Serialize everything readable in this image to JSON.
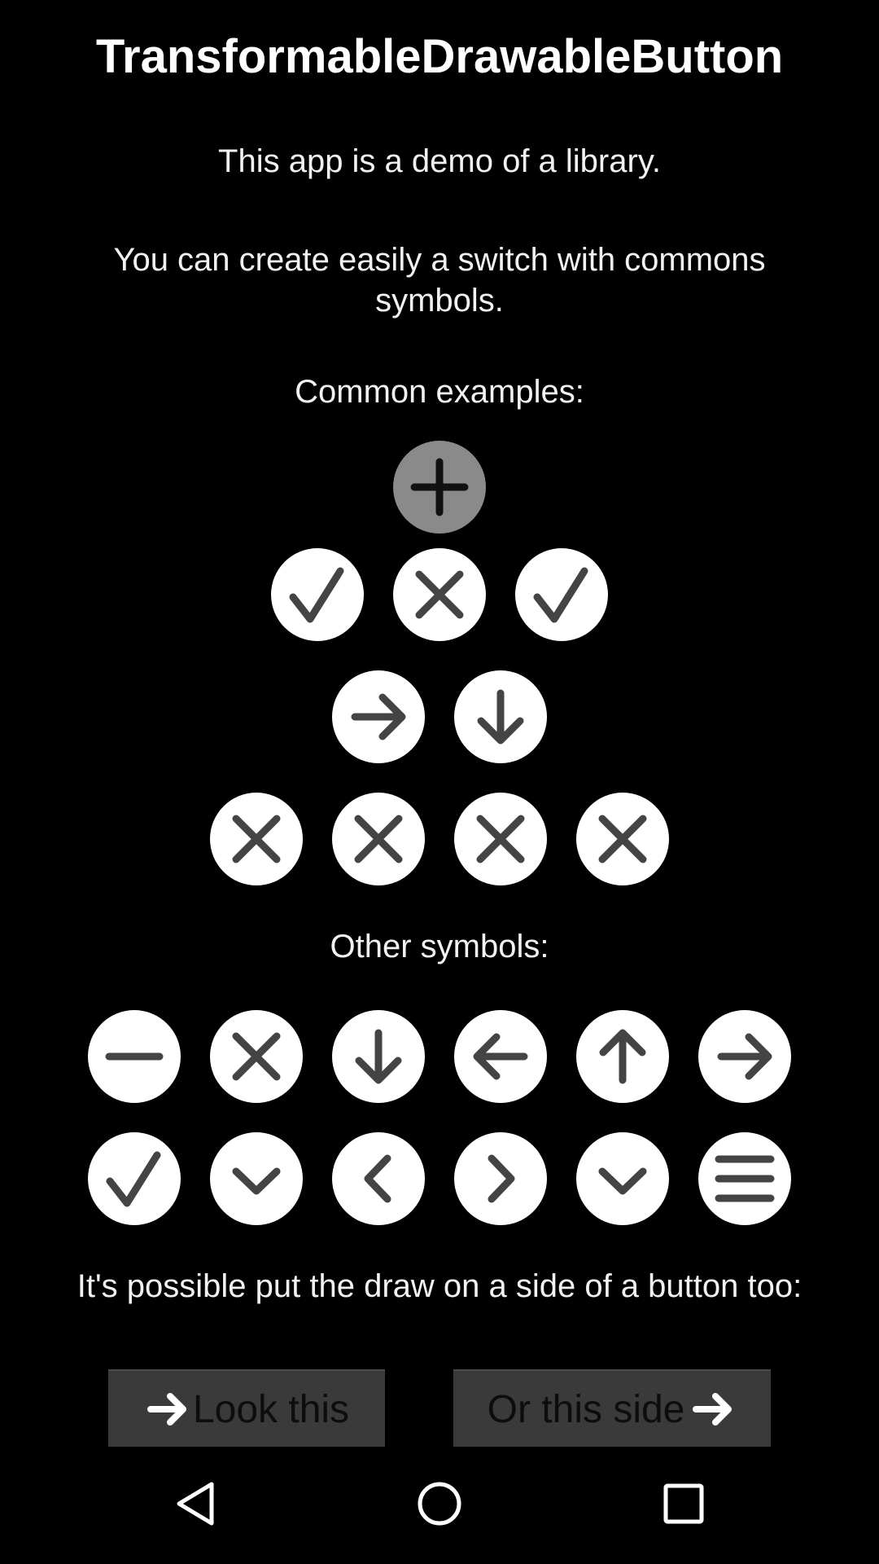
{
  "header": {
    "title": "TransformableDrawableButton"
  },
  "texts": {
    "intro": "This app is a demo of a library.",
    "description": "You can create easily a switch with commons symbols.",
    "common_heading": "Common examples:",
    "other_heading": "Other symbols:",
    "side_heading": "It's possible put the draw on a side of a button too:"
  },
  "colors": {
    "background": "#000000",
    "circle": "#ffffff",
    "circle_pressed": "#8a8a8a",
    "glyph": "#444444",
    "button_bg": "#3a3a3a"
  },
  "common_examples": {
    "row1": [
      "plus-icon"
    ],
    "row2": [
      "check-icon",
      "close-icon",
      "check-icon"
    ],
    "row3": [
      "arrow-right-icon",
      "arrow-down-icon"
    ],
    "row4": [
      "close-icon",
      "close-icon",
      "close-icon",
      "close-icon"
    ]
  },
  "other_symbols": {
    "row1": [
      "minus-icon",
      "close-icon",
      "arrow-down-icon",
      "arrow-left-icon",
      "arrow-up-icon",
      "arrow-right-icon"
    ],
    "row2": [
      "check-icon",
      "chevron-down-icon",
      "chevron-left-icon",
      "chevron-right-icon",
      "chevron-down-icon",
      "menu-icon"
    ]
  },
  "side_buttons": {
    "left_label": "Look this",
    "right_label": "Or this side"
  },
  "navbar": {
    "items": [
      "back-icon",
      "home-icon",
      "recents-icon"
    ]
  }
}
